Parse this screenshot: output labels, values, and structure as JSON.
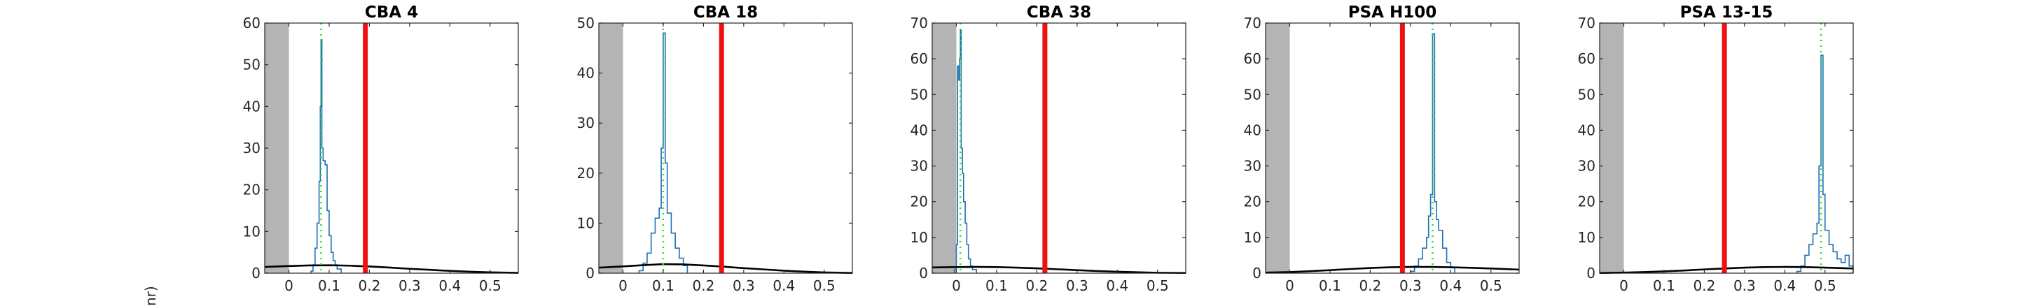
{
  "figure": {
    "ylabel_fragment": "nr)"
  },
  "chart_data": [
    {
      "type": "line",
      "title": "CBA 4",
      "xlim": [
        -0.06,
        0.57
      ],
      "ylim": [
        0,
        60
      ],
      "xticks": [
        0,
        0.1,
        0.2,
        0.3,
        0.4,
        0.5
      ],
      "xtick_labels": [
        "0",
        "0.1",
        "0.2",
        "0.3",
        "0.4",
        "0.5"
      ],
      "yticks": [
        0,
        10,
        20,
        30,
        40,
        50,
        60
      ],
      "ytick_labels": [
        "0",
        "10",
        "20",
        "30",
        "40",
        "50",
        "60"
      ],
      "shaded_region": [
        -0.06,
        0
      ],
      "red_line_x": 0.19,
      "green_dotted_x": 0.08,
      "histogram": {
        "x": [
          0.055,
          0.06,
          0.065,
          0.07,
          0.075,
          0.078,
          0.08,
          0.082,
          0.085,
          0.09,
          0.095,
          0.1,
          0.105,
          0.11,
          0.115,
          0.12,
          0.13
        ],
        "y": [
          0.5,
          2,
          6,
          12,
          22,
          40,
          56,
          30,
          27,
          26,
          15,
          9,
          5,
          3,
          2,
          1,
          0.3
        ]
      },
      "black_curve": {
        "x": [
          -0.06,
          0,
          0.05,
          0.1,
          0.15,
          0.2,
          0.25,
          0.3,
          0.35,
          0.4,
          0.45,
          0.5,
          0.57
        ],
        "y": [
          1.5,
          1.7,
          1.85,
          1.9,
          1.8,
          1.6,
          1.35,
          1.05,
          0.8,
          0.55,
          0.35,
          0.2,
          0.08
        ]
      },
      "colors": {
        "histogram": "#1f6fb5",
        "red_line": "#ee1111",
        "green_dotted": "#22dd22",
        "shade": "#b4b4b4",
        "curve": "#000000"
      }
    },
    {
      "type": "line",
      "title": "CBA 18",
      "xlim": [
        -0.06,
        0.57
      ],
      "ylim": [
        0,
        50
      ],
      "xticks": [
        0,
        0.1,
        0.2,
        0.3,
        0.4,
        0.5
      ],
      "xtick_labels": [
        "0",
        "0.1",
        "0.2",
        "0.3",
        "0.4",
        "0.5"
      ],
      "yticks": [
        0,
        10,
        20,
        30,
        40,
        50
      ],
      "ytick_labels": [
        "0",
        "10",
        "20",
        "30",
        "40",
        "50"
      ],
      "shaded_region": [
        -0.06,
        0
      ],
      "red_line_x": 0.245,
      "green_dotted_x": 0.1,
      "histogram": {
        "x": [
          0.04,
          0.05,
          0.06,
          0.07,
          0.08,
          0.09,
          0.095,
          0.1,
          0.105,
          0.11,
          0.12,
          0.13,
          0.14,
          0.15,
          0.16
        ],
        "y": [
          0.5,
          2,
          4,
          8,
          11,
          13,
          25,
          48,
          22,
          12,
          8,
          5,
          3,
          1.5,
          0.3
        ]
      },
      "black_curve": {
        "x": [
          -0.06,
          0,
          0.05,
          0.1,
          0.15,
          0.2,
          0.25,
          0.3,
          0.35,
          0.4,
          0.45,
          0.5,
          0.57
        ],
        "y": [
          1.1,
          1.35,
          1.6,
          1.8,
          1.75,
          1.55,
          1.3,
          1.0,
          0.75,
          0.5,
          0.3,
          0.15,
          0.05
        ]
      },
      "colors": {
        "histogram": "#1f6fb5",
        "red_line": "#ee1111",
        "green_dotted": "#22dd22",
        "shade": "#b4b4b4",
        "curve": "#000000"
      }
    },
    {
      "type": "line",
      "title": "CBA 38",
      "xlim": [
        -0.06,
        0.57
      ],
      "ylim": [
        0,
        70
      ],
      "xticks": [
        0,
        0.1,
        0.2,
        0.3,
        0.4,
        0.5
      ],
      "xtick_labels": [
        "0",
        "0.1",
        "0.2",
        "0.3",
        "0.4",
        "0.5"
      ],
      "yticks": [
        0,
        10,
        20,
        30,
        40,
        50,
        60,
        70
      ],
      "ytick_labels": [
        "0",
        "10",
        "20",
        "30",
        "40",
        "50",
        "60",
        "70"
      ],
      "shaded_region": [
        -0.06,
        0
      ],
      "red_line_x": 0.22,
      "green_dotted_x": 0.01,
      "histogram": {
        "x": [
          -0.005,
          0,
          0.003,
          0.006,
          0.008,
          0.01,
          0.012,
          0.015,
          0.018,
          0.022,
          0.026,
          0.03,
          0.035,
          0.04,
          0.05
        ],
        "y": [
          1,
          8,
          58,
          54,
          60,
          68,
          35,
          28,
          20,
          14,
          8,
          4,
          2,
          1,
          0.3
        ]
      },
      "black_curve": {
        "x": [
          -0.06,
          0,
          0.05,
          0.1,
          0.15,
          0.2,
          0.25,
          0.3,
          0.35,
          0.4,
          0.45,
          0.5,
          0.57
        ],
        "y": [
          1.6,
          1.7,
          1.75,
          1.7,
          1.55,
          1.35,
          1.1,
          0.85,
          0.6,
          0.4,
          0.25,
          0.12,
          0.05
        ]
      },
      "colors": {
        "histogram": "#1f6fb5",
        "red_line": "#ee1111",
        "green_dotted": "#22dd22",
        "shade": "#b4b4b4",
        "curve": "#000000"
      }
    },
    {
      "type": "line",
      "title": "PSA H100",
      "xlim": [
        -0.06,
        0.57
      ],
      "ylim": [
        0,
        70
      ],
      "xticks": [
        0,
        0.1,
        0.2,
        0.3,
        0.4,
        0.5
      ],
      "xtick_labels": [
        "0",
        "0.1",
        "0.2",
        "0.3",
        "0.4",
        "0.5"
      ],
      "yticks": [
        0,
        10,
        20,
        30,
        40,
        50,
        60,
        70
      ],
      "ytick_labels": [
        "0",
        "10",
        "20",
        "30",
        "40",
        "50",
        "60",
        "70"
      ],
      "shaded_region": [
        -0.06,
        0
      ],
      "red_line_x": 0.28,
      "green_dotted_x": 0.355,
      "histogram": {
        "x": [
          0.3,
          0.31,
          0.32,
          0.33,
          0.34,
          0.345,
          0.35,
          0.355,
          0.36,
          0.365,
          0.37,
          0.38,
          0.39,
          0.4,
          0.41
        ],
        "y": [
          0.5,
          2,
          4,
          7,
          10,
          16,
          22,
          67,
          20,
          15,
          12,
          7,
          3,
          1.5,
          0.3
        ]
      },
      "black_curve": {
        "x": [
          -0.06,
          0,
          0.05,
          0.1,
          0.15,
          0.2,
          0.25,
          0.3,
          0.35,
          0.4,
          0.45,
          0.5,
          0.57
        ],
        "y": [
          0.15,
          0.3,
          0.55,
          0.85,
          1.15,
          1.45,
          1.65,
          1.75,
          1.75,
          1.65,
          1.5,
          1.3,
          1.0
        ]
      },
      "colors": {
        "histogram": "#1f6fb5",
        "red_line": "#ee1111",
        "green_dotted": "#22dd22",
        "shade": "#b4b4b4",
        "curve": "#000000"
      }
    },
    {
      "type": "line",
      "title": "PSA 13-15",
      "xlim": [
        -0.06,
        0.57
      ],
      "ylim": [
        0,
        70
      ],
      "xticks": [
        0,
        0.1,
        0.2,
        0.3,
        0.4,
        0.5
      ],
      "xtick_labels": [
        "0",
        "0.1",
        "0.2",
        "0.3",
        "0.4",
        "0.5"
      ],
      "yticks": [
        0,
        10,
        20,
        30,
        40,
        50,
        60,
        70
      ],
      "ytick_labels": [
        "0",
        "10",
        "20",
        "30",
        "40",
        "50",
        "60",
        "70"
      ],
      "shaded_region": [
        -0.06,
        0
      ],
      "red_line_x": 0.25,
      "green_dotted_x": 0.49,
      "histogram": {
        "x": [
          0.43,
          0.44,
          0.45,
          0.46,
          0.47,
          0.48,
          0.485,
          0.49,
          0.495,
          0.5,
          0.51,
          0.52,
          0.53,
          0.54,
          0.55,
          0.56,
          0.57
        ],
        "y": [
          0.5,
          2,
          5,
          8,
          11,
          14,
          30,
          61,
          22,
          12,
          8,
          6,
          4,
          3,
          5,
          2,
          1
        ]
      },
      "black_curve": {
        "x": [
          -0.06,
          0,
          0.05,
          0.1,
          0.15,
          0.2,
          0.25,
          0.3,
          0.35,
          0.4,
          0.45,
          0.5,
          0.57
        ],
        "y": [
          0.05,
          0.15,
          0.3,
          0.5,
          0.75,
          1.05,
          1.3,
          1.55,
          1.7,
          1.75,
          1.7,
          1.55,
          1.3
        ]
      },
      "colors": {
        "histogram": "#1f6fb5",
        "red_line": "#ee1111",
        "green_dotted": "#22dd22",
        "shade": "#b4b4b4",
        "curve": "#000000"
      }
    }
  ]
}
